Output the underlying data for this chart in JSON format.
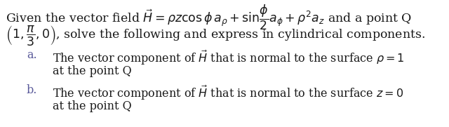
{
  "bg_color": "#ffffff",
  "text_color": "#1a1a1a",
  "label_color": "#5a5a9a",
  "figsize": [
    6.4,
    1.81
  ],
  "dpi": 100,
  "line1": "Given the vector field $\\vec{H} = \\rho z\\cos\\phi\\, a_{\\rho} + \\sin\\!\\dfrac{\\phi}{2}a_{\\phi} + \\rho^2 a_z$ and a point Q",
  "line2": "$\\left(1,\\dfrac{\\pi}{3},0\\right)$, solve the following and express in cylindrical components.",
  "label_a": "a.",
  "label_b": "b.",
  "item_a_line1": "The vector component of $\\vec{H}$ that is normal to the surface $\\rho = 1$",
  "item_a_line2": "at the point Q",
  "item_b_line1": "The vector component of $\\vec{H}$ that is normal to the surface $z = 0$",
  "item_b_line2": "at the point Q",
  "fs_main": 12.5,
  "fs_label": 11.5,
  "fs_item": 11.5
}
